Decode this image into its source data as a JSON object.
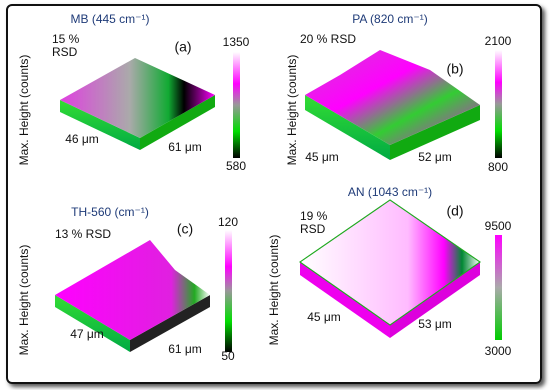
{
  "panels": [
    {
      "title": "MB (445 cm⁻¹)",
      "rsd": [
        "15 %",
        "RSD"
      ],
      "label": "(a)",
      "y_label": "Max. Height (counts)",
      "x_axis": "46 μm",
      "y_axis": "61 μm",
      "colorbar_max": 1350,
      "colorbar_min": 580
    },
    {
      "title": "PA (820 cm⁻¹)",
      "rsd": [
        "20 % RSD"
      ],
      "label": "(b)",
      "y_label": "Max. Height (counts)",
      "x_axis": "45 μm",
      "y_axis": "52 μm",
      "colorbar_max": 2100,
      "colorbar_min": 800
    },
    {
      "title": "TH-560 (cm⁻¹)",
      "rsd": [
        "13 % RSD"
      ],
      "label": "(c)",
      "y_label": "Max. Height (counts)",
      "x_axis": "47 μm",
      "y_axis": "61 μm",
      "colorbar_max": 120,
      "colorbar_min": 50
    },
    {
      "title": "AN (1043 cm⁻¹)",
      "rsd": [
        "19 %",
        "RSD"
      ],
      "label": "(d)",
      "y_label": "Max. Height (counts)",
      "x_axis": "45 μm",
      "y_axis": "53 μm",
      "colorbar_max": 9500,
      "colorbar_min": 3000
    }
  ]
}
